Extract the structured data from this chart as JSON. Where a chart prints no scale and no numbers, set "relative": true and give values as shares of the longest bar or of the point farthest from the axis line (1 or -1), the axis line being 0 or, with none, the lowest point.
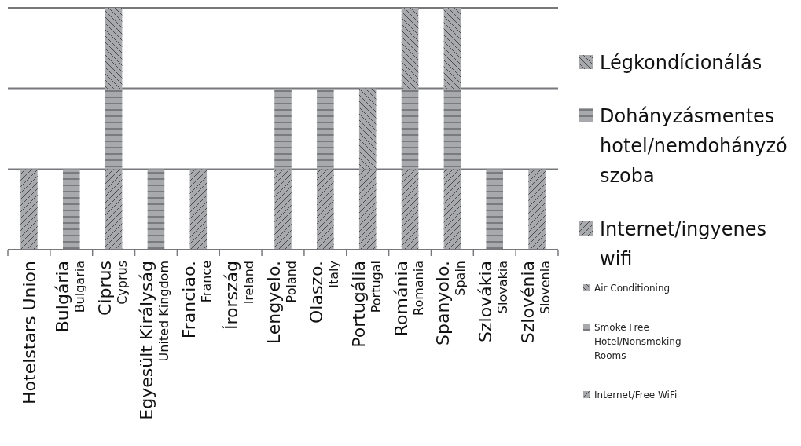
{
  "chart_data": {
    "type": "bar",
    "stacked": true,
    "relative": true,
    "legend": "right",
    "categories": [
      "Hotelstars Union",
      "Bulgária\nBulgaria",
      "Ciprus\nCyprus",
      "Egyesült Királyság\nUnited Kingdom",
      "Franciao.\nFrance",
      "Írország\nIreland",
      "Lengyelo.\nPoland",
      "Olaszo.\nItaly",
      "Portugália\nPortugal",
      "Románia\nRomania",
      "Spanyolo.\nSpain",
      "Szlovákia\nSlovakia",
      "Szlovénia\nSlovenia"
    ],
    "series": [
      {
        "name": "Internet/ingyenes wifi",
        "color": "#a7a9ac",
        "values": [
          0.333,
          0,
          0.333,
          0,
          0.333,
          0,
          0.333,
          0.333,
          0.333,
          0.333,
          0.333,
          0,
          0.333
        ]
      },
      {
        "name": "Dohányzásmentes hotel/nemdohányzó szoba",
        "color": "#a7a9ac",
        "values": [
          0,
          0.333,
          0.333,
          0.333,
          0,
          0,
          0.333,
          0.333,
          0,
          0.333,
          0.333,
          0.333,
          0
        ]
      },
      {
        "name": "Légkondícionálás",
        "color": "#a7a9ac",
        "values": [
          0,
          0,
          0.334,
          0,
          0,
          0,
          0,
          0,
          0.334,
          0.334,
          0.334,
          0,
          0
        ]
      }
    ],
    "annotations": [
      "Internet/Free WiFi",
      "Smoke Free Hotel/Nonsmoking Rooms",
      "Air Conditioning"
    ],
    "ref_lines": [
      {
        "axis": "y",
        "value": 0.333,
        "color": "#77787b"
      },
      {
        "axis": "y",
        "value": 0.667,
        "color": "#77787b"
      },
      {
        "axis": "y",
        "value": 1,
        "color": "#77787b"
      }
    ]
  }
}
